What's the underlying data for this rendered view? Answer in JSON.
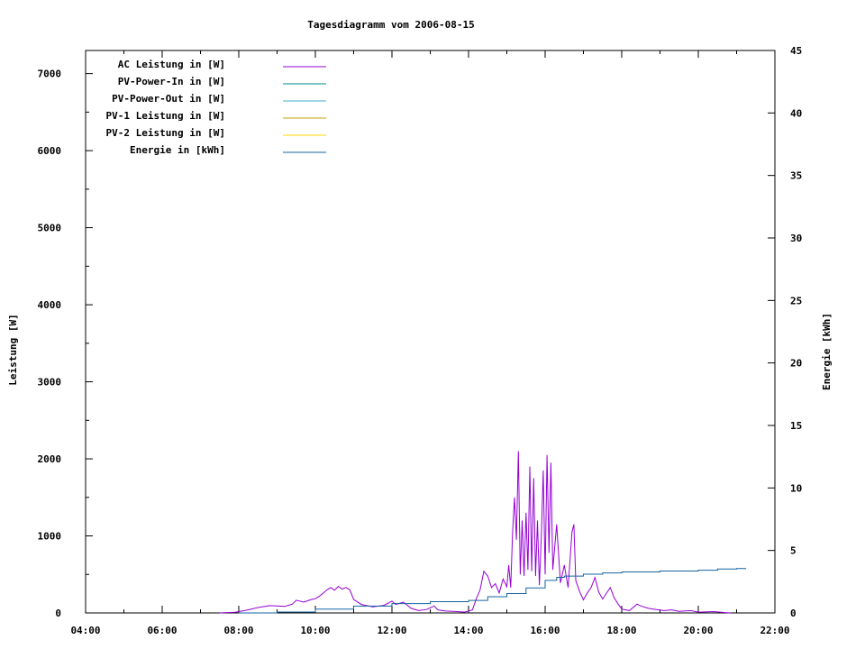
{
  "chart_data": {
    "type": "line",
    "title": "Tagesdiagramm vom 2006-08-15",
    "ylabel": "Leistung [W]",
    "y2label": "Energie [kWh]",
    "x_ticks": [
      "04:00",
      "06:00",
      "08:00",
      "10:00",
      "12:00",
      "14:00",
      "16:00",
      "18:00",
      "20:00",
      "22:00"
    ],
    "xlim_hours": [
      4,
      22
    ],
    "y_ticks": [
      "0",
      "1000",
      "2000",
      "3000",
      "4000",
      "5000",
      "6000",
      "7000"
    ],
    "ylim": [
      0,
      7300
    ],
    "y2_ticks": [
      "0",
      "5",
      "10",
      "15",
      "20",
      "25",
      "30",
      "35",
      "40",
      "45"
    ],
    "y2lim": [
      0,
      45
    ],
    "grid": false,
    "legend_position": "top-left",
    "series": [
      {
        "name": "AC Leistung in [W]",
        "color": "#9400d3",
        "axis": "left",
        "points": [
          [
            7.5,
            0
          ],
          [
            7.9,
            8
          ],
          [
            8.2,
            35
          ],
          [
            8.5,
            70
          ],
          [
            8.8,
            95
          ],
          [
            9.0,
            90
          ],
          [
            9.2,
            85
          ],
          [
            9.4,
            115
          ],
          [
            9.5,
            165
          ],
          [
            9.7,
            140
          ],
          [
            9.9,
            175
          ],
          [
            10.0,
            185
          ],
          [
            10.1,
            215
          ],
          [
            10.2,
            255
          ],
          [
            10.3,
            300
          ],
          [
            10.4,
            330
          ],
          [
            10.5,
            295
          ],
          [
            10.6,
            345
          ],
          [
            10.7,
            310
          ],
          [
            10.8,
            330
          ],
          [
            10.9,
            300
          ],
          [
            11.0,
            175
          ],
          [
            11.2,
            110
          ],
          [
            11.5,
            80
          ],
          [
            11.8,
            100
          ],
          [
            12.0,
            155
          ],
          [
            12.1,
            110
          ],
          [
            12.3,
            140
          ],
          [
            12.5,
            60
          ],
          [
            12.7,
            30
          ],
          [
            12.9,
            45
          ],
          [
            13.1,
            90
          ],
          [
            13.2,
            40
          ],
          [
            13.4,
            25
          ],
          [
            13.6,
            20
          ],
          [
            13.9,
            12
          ],
          [
            14.1,
            40
          ],
          [
            14.2,
            180
          ],
          [
            14.3,
            300
          ],
          [
            14.4,
            540
          ],
          [
            14.5,
            480
          ],
          [
            14.6,
            330
          ],
          [
            14.7,
            380
          ],
          [
            14.8,
            260
          ],
          [
            14.9,
            440
          ],
          [
            15.0,
            340
          ],
          [
            15.05,
            620
          ],
          [
            15.1,
            330
          ],
          [
            15.15,
            1050
          ],
          [
            15.2,
            1500
          ],
          [
            15.25,
            950
          ],
          [
            15.3,
            2100
          ],
          [
            15.35,
            500
          ],
          [
            15.4,
            1200
          ],
          [
            15.45,
            480
          ],
          [
            15.5,
            1300
          ],
          [
            15.55,
            560
          ],
          [
            15.6,
            1900
          ],
          [
            15.65,
            540
          ],
          [
            15.7,
            1750
          ],
          [
            15.75,
            480
          ],
          [
            15.8,
            1200
          ],
          [
            15.85,
            360
          ],
          [
            15.9,
            1000
          ],
          [
            15.95,
            1850
          ],
          [
            16.0,
            500
          ],
          [
            16.05,
            2050
          ],
          [
            16.1,
            780
          ],
          [
            16.15,
            1950
          ],
          [
            16.2,
            560
          ],
          [
            16.3,
            1150
          ],
          [
            16.4,
            390
          ],
          [
            16.5,
            620
          ],
          [
            16.6,
            330
          ],
          [
            16.7,
            1050
          ],
          [
            16.75,
            1150
          ],
          [
            16.8,
            420
          ],
          [
            16.9,
            280
          ],
          [
            17.0,
            170
          ],
          [
            17.1,
            260
          ],
          [
            17.2,
            330
          ],
          [
            17.3,
            460
          ],
          [
            17.4,
            270
          ],
          [
            17.5,
            180
          ],
          [
            17.7,
            330
          ],
          [
            17.8,
            200
          ],
          [
            17.9,
            120
          ],
          [
            18.0,
            50
          ],
          [
            18.2,
            30
          ],
          [
            18.4,
            115
          ],
          [
            18.5,
            90
          ],
          [
            18.7,
            60
          ],
          [
            18.9,
            45
          ],
          [
            19.1,
            30
          ],
          [
            19.3,
            40
          ],
          [
            19.5,
            20
          ],
          [
            19.8,
            30
          ],
          [
            20.0,
            10
          ],
          [
            20.4,
            18
          ],
          [
            20.7,
            5
          ],
          [
            20.85,
            0
          ]
        ]
      },
      {
        "name": "PV-Power-In in [W]",
        "color": "#008b8b",
        "axis": "left",
        "points": []
      },
      {
        "name": "PV-Power-Out in [W]",
        "color": "#3cb0c8",
        "axis": "left",
        "points": []
      },
      {
        "name": "PV-1 Leistung in [W]",
        "color": "#c8a000",
        "axis": "left",
        "points": []
      },
      {
        "name": "PV-2 Leistung in [W]",
        "color": "#ffd700",
        "axis": "left",
        "points": []
      },
      {
        "name": "Energie in [kWh]",
        "color": "#1464a0",
        "axis": "right",
        "points": [
          [
            8.0,
            0
          ],
          [
            9.0,
            0.07
          ],
          [
            10.0,
            0.3
          ],
          [
            11.0,
            0.55
          ],
          [
            12.0,
            0.75
          ],
          [
            13.0,
            0.9
          ],
          [
            14.0,
            1.0
          ],
          [
            14.5,
            1.3
          ],
          [
            15.0,
            1.55
          ],
          [
            15.5,
            2.0
          ],
          [
            16.0,
            2.6
          ],
          [
            16.3,
            2.85
          ],
          [
            16.5,
            2.95
          ],
          [
            17.0,
            3.1
          ],
          [
            17.5,
            3.2
          ],
          [
            18.0,
            3.28
          ],
          [
            19.0,
            3.35
          ],
          [
            20.0,
            3.42
          ],
          [
            20.5,
            3.52
          ],
          [
            21.0,
            3.55
          ],
          [
            21.25,
            3.55
          ]
        ]
      }
    ]
  }
}
